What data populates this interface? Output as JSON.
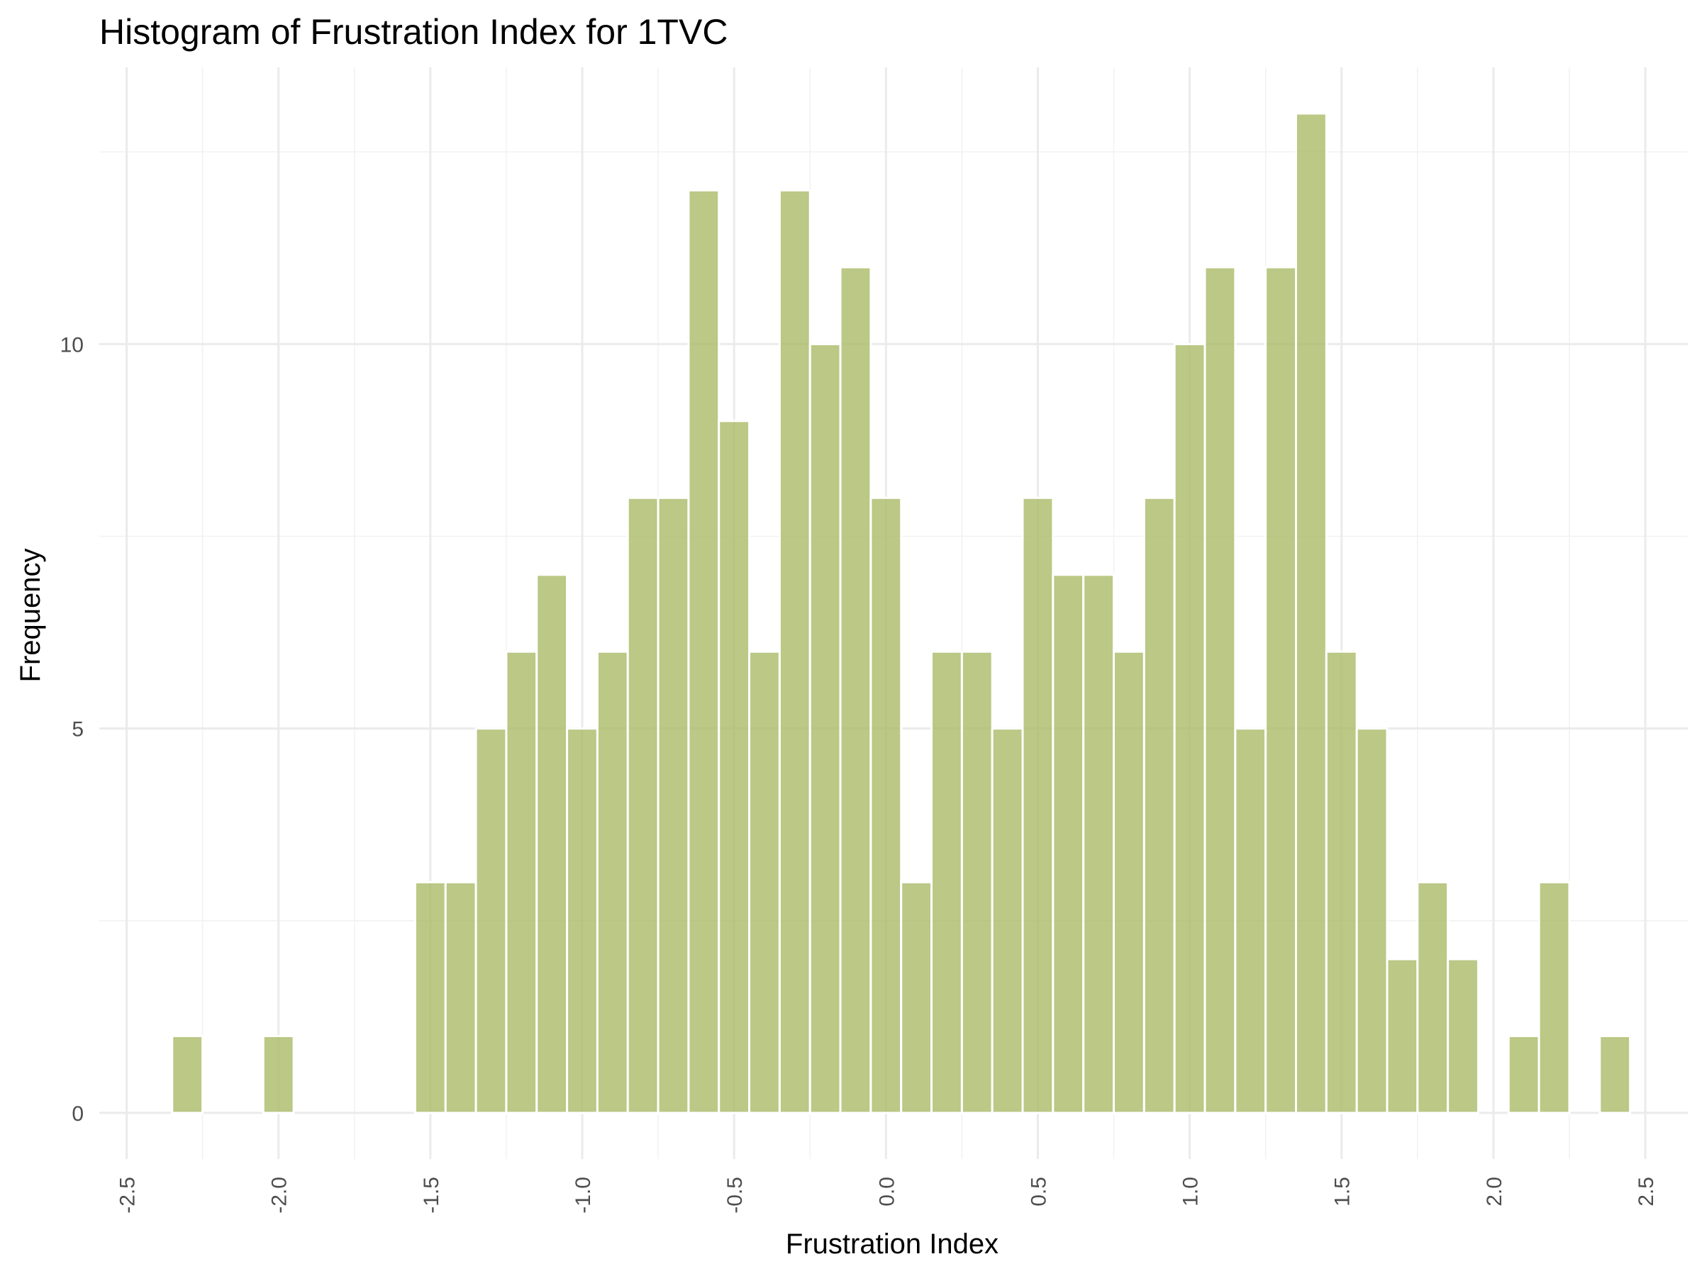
{
  "chart_data": {
    "type": "bar",
    "title": "Histogram of Frustration Index for 1TVC",
    "xlabel": "Frustration Index",
    "ylabel": "Frequency",
    "xlim": [
      -2.59,
      2.64
    ],
    "ylim": [
      -0.6,
      13.6
    ],
    "x_ticks": [
      -2.5,
      -2.0,
      -1.5,
      -1.0,
      -0.5,
      0.0,
      0.5,
      1.0,
      1.5,
      2.0,
      2.5
    ],
    "x_tick_labels": [
      "-2.5",
      "-2.0",
      "-1.5",
      "-1.0",
      "-0.5",
      "0.0",
      "0.5",
      "1.0",
      "1.5",
      "2.0",
      "2.5"
    ],
    "y_ticks": [
      0,
      5,
      10
    ],
    "y_tick_labels": [
      "0",
      "5",
      "10"
    ],
    "bin_width": 0.1,
    "bins": [
      {
        "x": -2.3,
        "count": 1
      },
      {
        "x": -2.0,
        "count": 1
      },
      {
        "x": -1.5,
        "count": 3
      },
      {
        "x": -1.4,
        "count": 3
      },
      {
        "x": -1.3,
        "count": 5
      },
      {
        "x": -1.2,
        "count": 6
      },
      {
        "x": -1.1,
        "count": 7
      },
      {
        "x": -1.0,
        "count": 5
      },
      {
        "x": -0.9,
        "count": 6
      },
      {
        "x": -0.8,
        "count": 8
      },
      {
        "x": -0.7,
        "count": 8
      },
      {
        "x": -0.6,
        "count": 12
      },
      {
        "x": -0.5,
        "count": 9
      },
      {
        "x": -0.4,
        "count": 6
      },
      {
        "x": -0.3,
        "count": 12
      },
      {
        "x": -0.2,
        "count": 10
      },
      {
        "x": -0.1,
        "count": 11
      },
      {
        "x": 0.0,
        "count": 8
      },
      {
        "x": 0.1,
        "count": 3
      },
      {
        "x": 0.2,
        "count": 6
      },
      {
        "x": 0.3,
        "count": 6
      },
      {
        "x": 0.4,
        "count": 5
      },
      {
        "x": 0.5,
        "count": 8
      },
      {
        "x": 0.6,
        "count": 7
      },
      {
        "x": 0.7,
        "count": 7
      },
      {
        "x": 0.8,
        "count": 6
      },
      {
        "x": 0.9,
        "count": 8
      },
      {
        "x": 1.0,
        "count": 10
      },
      {
        "x": 1.1,
        "count": 11
      },
      {
        "x": 1.2,
        "count": 5
      },
      {
        "x": 1.3,
        "count": 11
      },
      {
        "x": 1.4,
        "count": 13
      },
      {
        "x": 1.5,
        "count": 6
      },
      {
        "x": 1.6,
        "count": 5
      },
      {
        "x": 1.7,
        "count": 2
      },
      {
        "x": 1.8,
        "count": 3
      },
      {
        "x": 1.9,
        "count": 2
      },
      {
        "x": 2.1,
        "count": 1
      },
      {
        "x": 2.2,
        "count": 3
      },
      {
        "x": 2.4,
        "count": 1
      }
    ],
    "grid": true,
    "legend": "none",
    "colors": {
      "bar_fill": "#a8b964",
      "bar_outline": "#ffffff",
      "grid_major": "#ebebeb",
      "grid_minor": "#f2f2f2",
      "tick_text": "#4d4d4d",
      "title_text": "#000000"
    }
  }
}
